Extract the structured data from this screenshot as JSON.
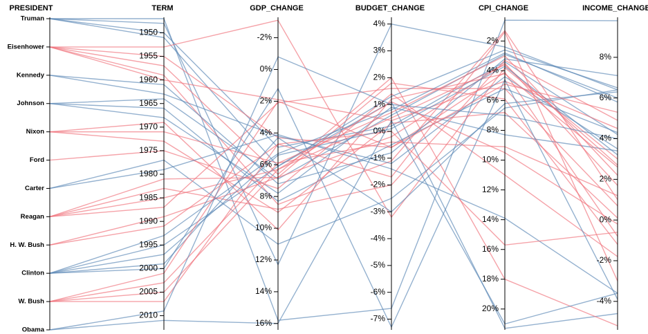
{
  "chart_data": {
    "type": "parallel",
    "dimensions": [
      {
        "name": "PRESIDENT",
        "categories": [
          "Truman",
          "Eisenhower",
          "Kennedy",
          "Johnson",
          "Nixon",
          "Ford",
          "Carter",
          "Reagan",
          "H. W. Bush",
          "Clinton",
          "W. Bush",
          "Obama"
        ],
        "category_colors": [
          "#5b87b5",
          "#f0707a",
          "#5b87b5",
          "#5b87b5",
          "#f0707a",
          "#f0707a",
          "#5b87b5",
          "#f0707a",
          "#f0707a",
          "#5b87b5",
          "#f0707a",
          "#5b87b5"
        ]
      },
      {
        "name": "TERM",
        "lim": [
          1947,
          2013
        ],
        "ticks": [
          1950,
          1955,
          1960,
          1965,
          1970,
          1975,
          1980,
          1985,
          1990,
          1995,
          2000,
          2005,
          2010
        ]
      },
      {
        "name": "GDP_CHANGE",
        "lim": [
          -3.2,
          16.4
        ],
        "ticks": [
          {
            "value": -2,
            "label": "-2%"
          },
          {
            "value": 0,
            "label": "0%"
          },
          {
            "value": 2,
            "label": "2%"
          },
          {
            "value": 4,
            "label": "4%"
          },
          {
            "value": 6,
            "label": "6%"
          },
          {
            "value": 8,
            "label": "8%"
          },
          {
            "value": 10,
            "label": "10%"
          },
          {
            "value": 12,
            "label": "12%"
          },
          {
            "value": 14,
            "label": "14%"
          },
          {
            "value": 16,
            "label": "16%"
          }
        ]
      },
      {
        "name": "BUDGET_CHANGE",
        "lim": [
          4.2,
          -7.4
        ],
        "ticks": [
          {
            "value": 4,
            "label": "4%"
          },
          {
            "value": 3,
            "label": "3%"
          },
          {
            "value": 2,
            "label": "2%"
          },
          {
            "value": 1,
            "label": "1%"
          },
          {
            "value": 0,
            "label": "0%"
          },
          {
            "value": -1,
            "label": "-1%"
          },
          {
            "value": -2,
            "label": "-2%"
          },
          {
            "value": -3,
            "label": "-3%"
          },
          {
            "value": -4,
            "label": "-4%"
          },
          {
            "value": -5,
            "label": "-5%"
          },
          {
            "value": -6,
            "label": "-6%"
          },
          {
            "value": -7,
            "label": "-7%"
          }
        ]
      },
      {
        "name": "CPI_CHANGE",
        "lim": [
          0.5,
          21.4
        ],
        "ticks": [
          {
            "value": 2,
            "label": "2%"
          },
          {
            "value": 4,
            "label": "4%"
          },
          {
            "value": 6,
            "label": "6%"
          },
          {
            "value": 8,
            "label": "8%"
          },
          {
            "value": 10,
            "label": "10%"
          },
          {
            "value": 12,
            "label": "12%"
          },
          {
            "value": 14,
            "label": "14%"
          },
          {
            "value": 16,
            "label": "16%"
          },
          {
            "value": 18,
            "label": "18%"
          },
          {
            "value": 20,
            "label": "20%"
          }
        ]
      },
      {
        "name": "INCOME_CHANGE",
        "lim": [
          9.9,
          -5.4
        ],
        "ticks": [
          {
            "value": 8,
            "label": "8%"
          },
          {
            "value": 6,
            "label": "6%"
          },
          {
            "value": 4,
            "label": "4%"
          },
          {
            "value": 2,
            "label": "2%"
          },
          {
            "value": 0,
            "label": "0%"
          },
          {
            "value": -2,
            "label": "-2%"
          },
          {
            "value": -4,
            "label": "-4%"
          }
        ]
      }
    ],
    "records": [
      {
        "president": "Truman",
        "values": [
          1947,
          15.8,
          -6.6,
          0.6,
          9.8
        ]
      },
      {
        "president": "Truman",
        "values": [
          1948,
          12.3,
          4.0,
          2.4,
          6.4
        ]
      },
      {
        "president": "Truman",
        "values": [
          1950,
          4.9,
          0.2,
          3.4,
          4.2
        ]
      },
      {
        "president": "Truman",
        "values": [
          1951,
          6.1,
          1.1,
          21.3,
          -4.6
        ]
      },
      {
        "president": "Eisenhower",
        "values": [
          1953,
          -3.1,
          -3.2,
          3.8,
          3.0
        ]
      },
      {
        "president": "Eisenhower",
        "values": [
          1955,
          4.3,
          -0.6,
          4.1,
          -0.8
        ]
      },
      {
        "president": "Eisenhower",
        "values": [
          1957,
          6.6,
          2.0,
          18.0,
          -5.2
        ]
      },
      {
        "president": "Eisenhower",
        "values": [
          1959,
          8.5,
          -1.1,
          1.3,
          1.0
        ]
      },
      {
        "president": "Eisenhower",
        "values": [
          1960,
          1.9,
          0.4,
          4.7,
          4.5
        ]
      },
      {
        "president": "Kennedy",
        "values": [
          1961,
          7.2,
          -0.8,
          3.2,
          7.1
        ]
      },
      {
        "president": "Kennedy",
        "values": [
          1963,
          4.2,
          -1.2,
          4.4,
          3.5
        ]
      },
      {
        "president": "Johnson",
        "values": [
          1964,
          6.9,
          0.6,
          2.9,
          6.0
        ]
      },
      {
        "president": "Johnson",
        "values": [
          1966,
          8.3,
          -0.5,
          5.2,
          4.3
        ]
      },
      {
        "president": "Johnson",
        "values": [
          1968,
          7.8,
          0.9,
          8.3,
          3.4
        ]
      },
      {
        "president": "Nixon",
        "values": [
          1969,
          10.1,
          1.2,
          4.2,
          2.6
        ]
      },
      {
        "president": "Nixon",
        "values": [
          1971,
          5.9,
          -0.4,
          9.1,
          1.2
        ]
      },
      {
        "president": "Nixon",
        "values": [
          1973,
          9.0,
          0.3,
          6.8,
          0.1
        ]
      },
      {
        "president": "Ford",
        "values": [
          1975,
          7.5,
          1.4,
          11.0,
          -1.8
        ]
      },
      {
        "president": "Carter",
        "values": [
          1977,
          11.0,
          -2.5,
          6.5,
          6.4
        ]
      },
      {
        "president": "Carter",
        "values": [
          1979,
          4.1,
          -1.4,
          13.9,
          -3.6
        ]
      },
      {
        "president": "Reagan",
        "values": [
          1981,
          6.8,
          1.8,
          5.9,
          -1.2
        ]
      },
      {
        "president": "Reagan",
        "values": [
          1983,
          8.8,
          -2.0,
          3.3,
          4.9
        ]
      },
      {
        "president": "Reagan",
        "values": [
          1985,
          6.3,
          0.5,
          3.6,
          2.7
        ]
      },
      {
        "president": "Reagan",
        "values": [
          1987,
          2.1,
          1.6,
          5.2,
          0.7
        ]
      },
      {
        "president": "H. W. Bush",
        "values": [
          1989,
          6.8,
          -0.2,
          3.5,
          1.7
        ]
      },
      {
        "president": "H. W. Bush",
        "values": [
          1991,
          4.7,
          0.0,
          15.7,
          -0.6
        ]
      },
      {
        "president": "Clinton",
        "values": [
          1993,
          5.3,
          0.8,
          2.8,
          5.8
        ]
      },
      {
        "president": "Clinton",
        "values": [
          1995,
          6.1,
          1.3,
          2.6,
          6.5
        ]
      },
      {
        "president": "Clinton",
        "values": [
          1997,
          5.4,
          0.1,
          3.7,
          3.2
        ]
      },
      {
        "president": "Clinton",
        "values": [
          1999,
          4.3,
          -3.0,
          6.2,
          6.3
        ]
      },
      {
        "president": "Clinton",
        "values": [
          2000,
          1.2,
          -7.3,
          4.6,
          -3.9
        ]
      },
      {
        "president": "W. Bush",
        "values": [
          2001,
          2.0,
          -0.6,
          4.9,
          5.3
        ]
      },
      {
        "president": "W. Bush",
        "values": [
          2003,
          5.9,
          0.7,
          3.0,
          2.2
        ]
      },
      {
        "president": "W. Bush",
        "values": [
          2005,
          6.3,
          1.1,
          9.5,
          -0.2
        ]
      },
      {
        "president": "W. Bush",
        "values": [
          2007,
          4.7,
          -1.7,
          1.4,
          -3.0
        ]
      },
      {
        "president": "Obama",
        "values": [
          2009,
          -0.8,
          1.0,
          7.0,
          4.0
        ]
      },
      {
        "president": "Obama",
        "values": [
          2011,
          16.0,
          0.4,
          21.0,
          -3.6
        ]
      }
    ]
  }
}
